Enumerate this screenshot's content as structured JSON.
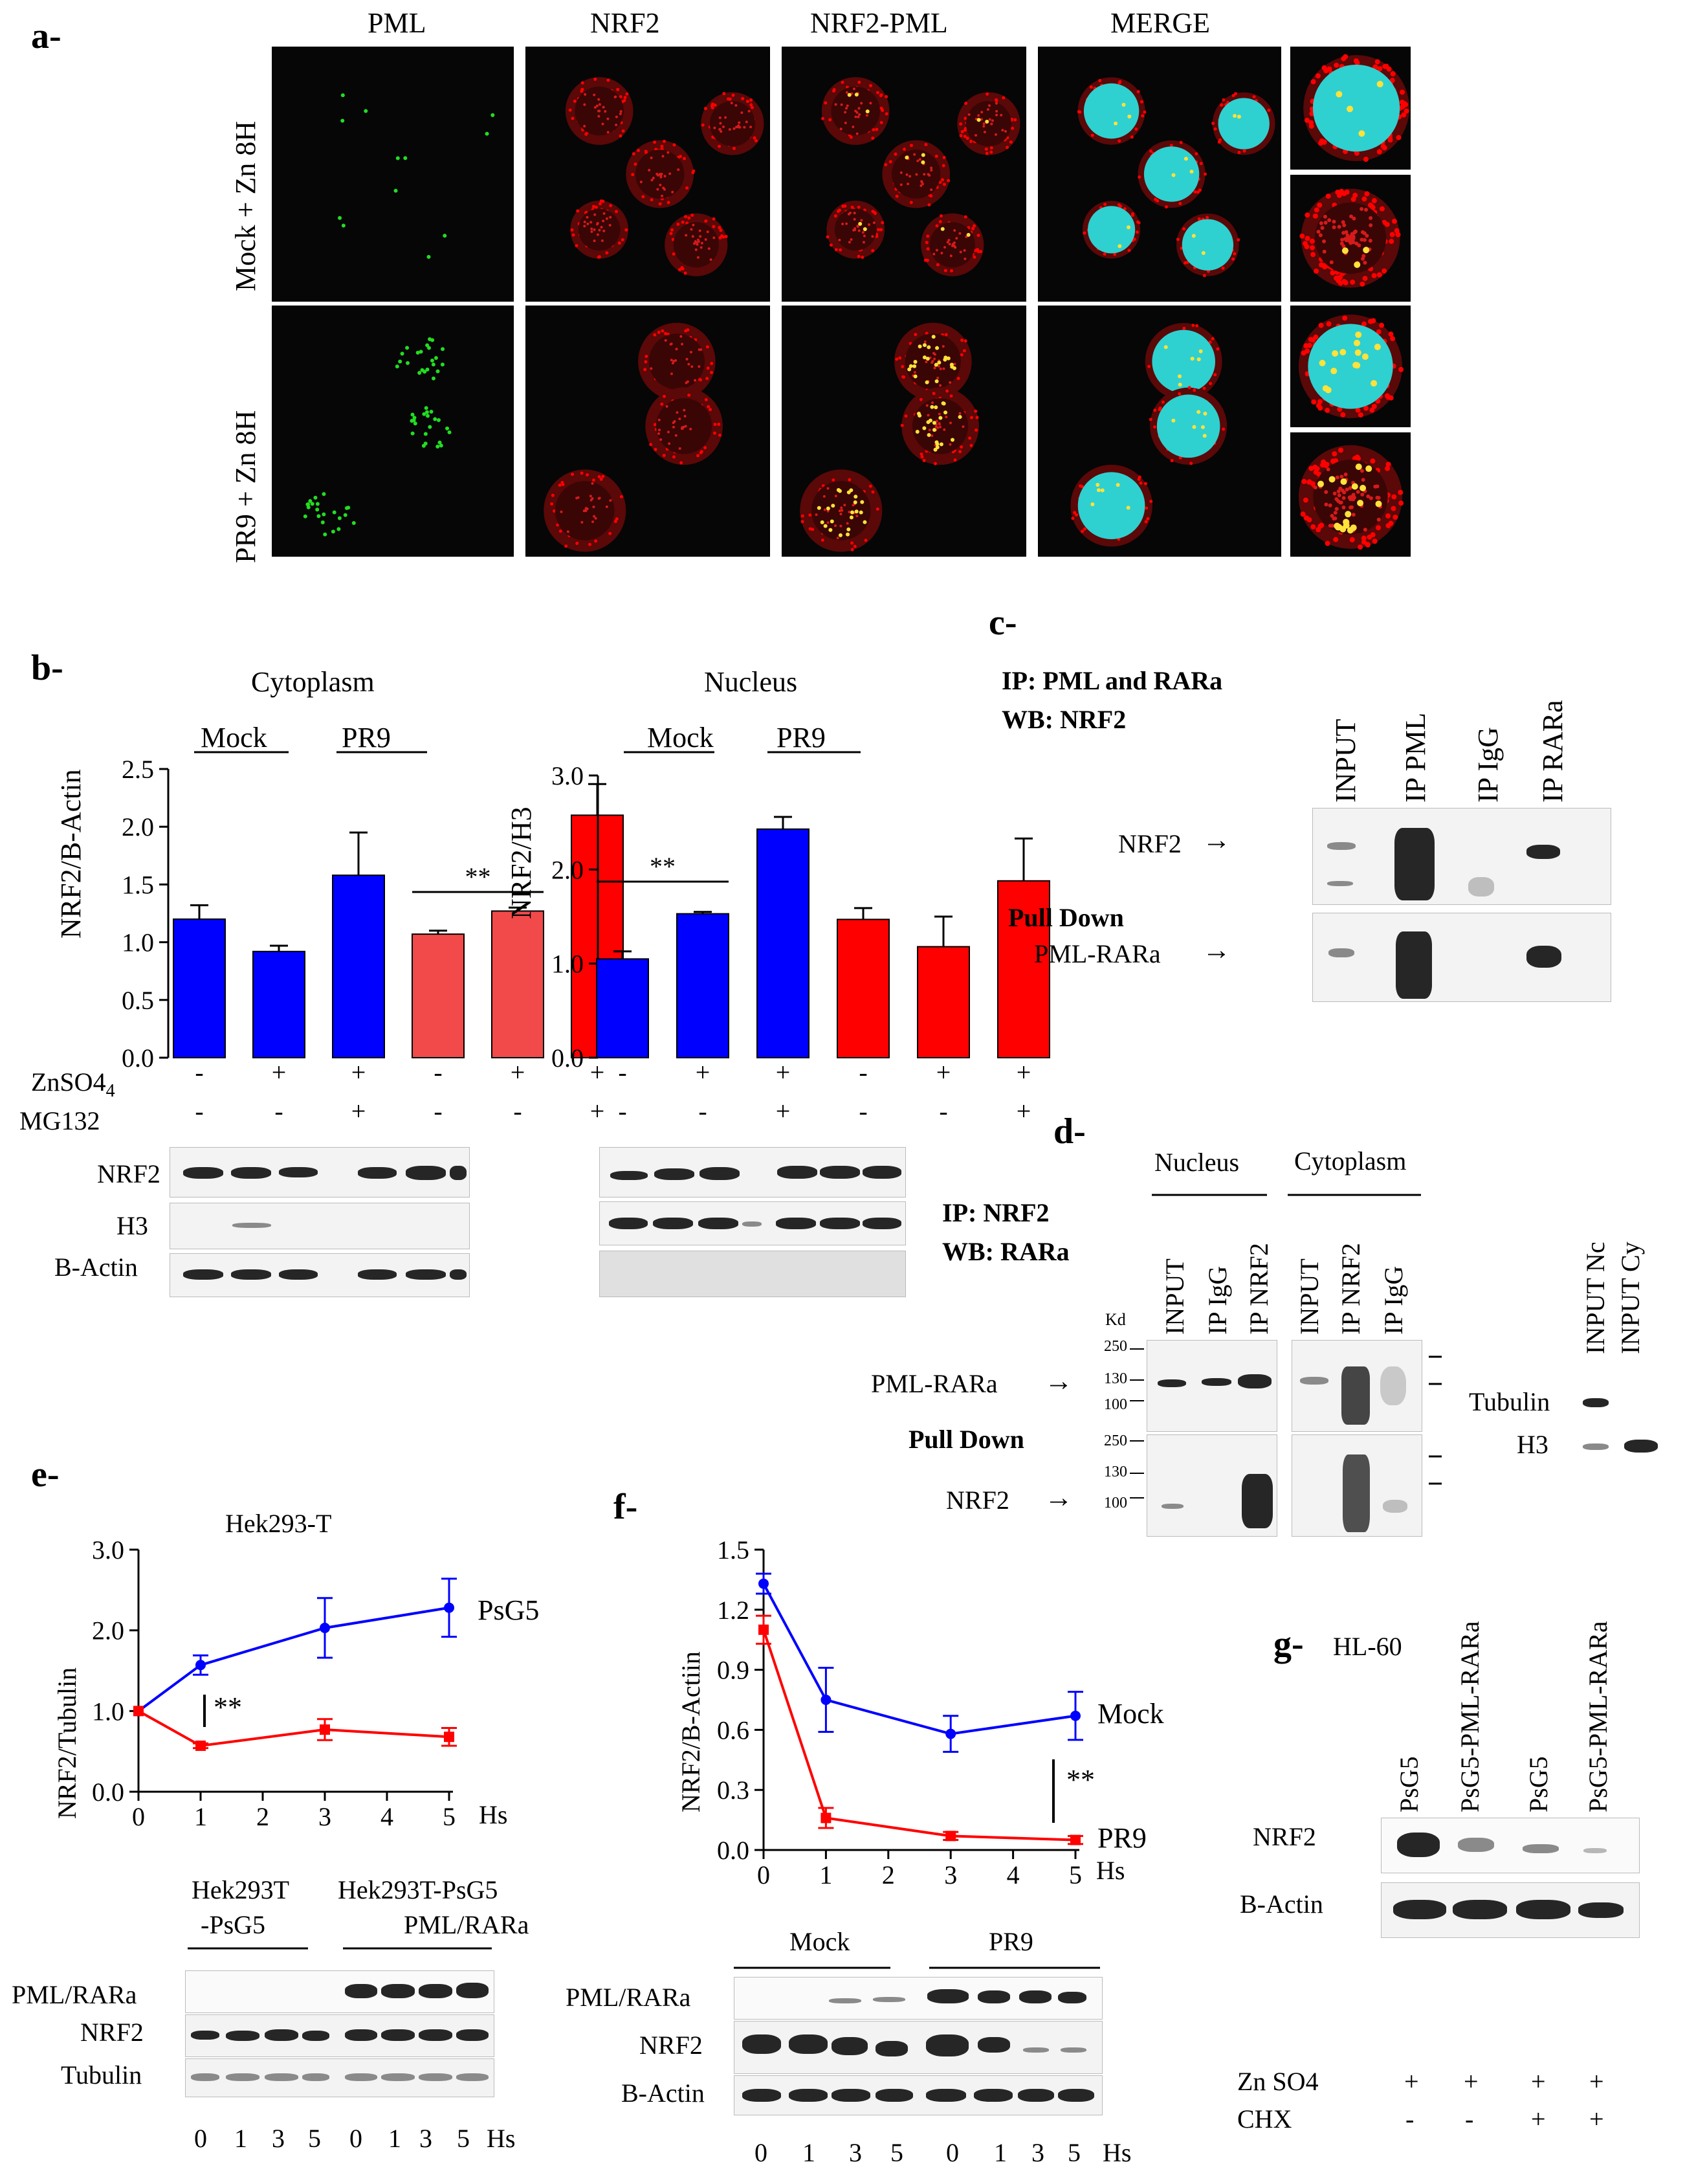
{
  "panel_labels": {
    "a": "a-",
    "b": "b-",
    "c": "c-",
    "d": "d-",
    "e": "e-",
    "f": "f-",
    "g": "g-"
  },
  "panel_a": {
    "columns": [
      "PML",
      "NRF2",
      "NRF2-PML",
      "MERGE"
    ],
    "rows": [
      "Mock + Zn 8H",
      "PR9 + Zn 8H"
    ]
  },
  "panel_b": {
    "cytoplasm_title": "Cytoplasm",
    "nucleus_title": "Nucleus",
    "group_mock": "Mock",
    "group_pr9": "PR9",
    "treat_labels": [
      "ZnSO4",
      "MG132"
    ],
    "treat_sub": "4",
    "znso4": [
      "-",
      "+",
      "+",
      "-",
      "+",
      "+"
    ],
    "mg132": [
      "-",
      "-",
      "+",
      "-",
      "-",
      "+"
    ],
    "sig": "**",
    "blot_labels": [
      "NRF2",
      "H3",
      "B-Actin"
    ]
  },
  "panel_c": {
    "title_lines": [
      "IP: PML and RARa",
      "WB: NRF2"
    ],
    "lanes": [
      "INPUT",
      "IP PML",
      "IP IgG",
      "IP RARa"
    ],
    "row1": "NRF2",
    "pull_down": "Pull Down",
    "row2": "PML-RARa",
    "arrow": "→"
  },
  "panel_d": {
    "nucleus": "Nucleus",
    "cytoplasm": "Cytoplasm",
    "title_lines": [
      "IP: NRF2",
      "WB: RARa"
    ],
    "lanes": [
      "INPUT",
      "IP IgG",
      "IP NRF2",
      "INPUT",
      "IP NRF2",
      "IP IgG"
    ],
    "kd": "Kd",
    "markers_top": [
      "250",
      "130",
      "100"
    ],
    "markers_bottom": [
      "250",
      "130",
      "100"
    ],
    "row1": "PML-RARa",
    "pull_down": "Pull Down",
    "row2": "NRF2",
    "side_lanes": [
      "INPUT Nc",
      "INPUT Cy"
    ],
    "side_rows": [
      "Tubulin",
      "H3"
    ],
    "arrow": "→"
  },
  "panel_e": {
    "title": "Hek293-T",
    "series_label": "PsG5",
    "sig": "**",
    "hs": "Hs",
    "group1": [
      "Hek293T",
      "-PsG5"
    ],
    "group2": [
      "Hek293T-PsG5",
      "PML/RARa"
    ],
    "blot_labels": [
      "PML/RARa",
      "NRF2",
      "Tubulin"
    ],
    "lanes": [
      "0",
      "1",
      "3",
      "5",
      "0",
      "1",
      "3",
      "5"
    ]
  },
  "panel_f": {
    "series_mock": "Mock",
    "series_pr9": "PR9",
    "sig": "**",
    "hs": "Hs",
    "group_mock": "Mock",
    "group_pr9": "PR9",
    "blot_labels": [
      "PML/RARa",
      "NRF2",
      "B-Actin"
    ],
    "lanes": [
      "0",
      "1",
      "3",
      "5",
      "0",
      "1",
      "3",
      "5"
    ]
  },
  "panel_g": {
    "title": "HL-60",
    "lanes": [
      "PsG5",
      "PsG5-PML-RARa",
      "PsG5",
      "PsG5-PML-RARa"
    ],
    "blot_labels": [
      "NRF2",
      "B-Actin"
    ],
    "treat_labels": [
      "Zn SO4",
      "CHX"
    ],
    "zn": [
      "+",
      "+",
      "+",
      "+"
    ],
    "chx": [
      "-",
      "-",
      "+",
      "+"
    ]
  },
  "colors": {
    "blue": "#0000ff",
    "red": "#ff0000",
    "pink": "#f24a4a",
    "cyan": "#2fd0d0",
    "micro_bg": "#060606"
  },
  "chart_data": [
    {
      "type": "bar",
      "title": "Cytoplasm",
      "ylabel": "NRF2/B-Actin",
      "ylim": [
        0,
        2.5
      ],
      "yticks": [
        "0.0",
        "0.5",
        "1.0",
        "1.5",
        "2.0",
        "2.5"
      ],
      "categories": [
        "Mock -/-",
        "Mock +/-",
        "Mock +/+",
        "PR9 -/-",
        "PR9 +/-",
        "PR9 +/+"
      ],
      "values": [
        1.2,
        0.92,
        1.58,
        1.07,
        1.27,
        2.1
      ],
      "errors": [
        0.12,
        0.05,
        0.37,
        0.03,
        0.03,
        0.27
      ],
      "bar_colors": [
        "#0000ff",
        "#0000ff",
        "#0000ff",
        "#f24a4a",
        "#f24a4a",
        "#ff0000"
      ],
      "sig_pair": [
        3,
        4
      ]
    },
    {
      "type": "bar",
      "title": "Nucleus",
      "ylabel": "NRF2/H3",
      "ylim": [
        0,
        3
      ],
      "yticks": [
        "0.0",
        "1.0",
        "2.0",
        "3.0"
      ],
      "categories": [
        "Mock -/-",
        "Mock +/-",
        "Mock +/+",
        "PR9 -/-",
        "PR9 +/-",
        "PR9 +/+"
      ],
      "values": [
        1.05,
        1.53,
        2.43,
        1.47,
        1.18,
        1.88
      ],
      "errors": [
        0.08,
        0.02,
        0.13,
        0.12,
        0.32,
        0.45
      ],
      "bar_colors": [
        "#0000ff",
        "#0000ff",
        "#0000ff",
        "#ff0000",
        "#ff0000",
        "#ff0000"
      ],
      "sig_pair": [
        0,
        1
      ]
    },
    {
      "type": "line",
      "title": "Hek293-T",
      "ylabel": "NRF2/Tubulin",
      "xlabel": "Hs",
      "xlim": [
        0,
        5
      ],
      "ylim": [
        0,
        3
      ],
      "xticks": [
        "0",
        "1",
        "2",
        "3",
        "4",
        "5"
      ],
      "yticks": [
        "0.0",
        "1.0",
        "2.0",
        "3.0"
      ],
      "series": [
        {
          "name": "PsG5",
          "color": "#0000ff",
          "x": [
            0,
            1,
            3,
            5
          ],
          "y": [
            1.0,
            1.57,
            2.03,
            2.28
          ],
          "err": [
            0,
            0.12,
            0.37,
            0.36
          ]
        },
        {
          "color": "#ff0000",
          "x": [
            0,
            1,
            3,
            5
          ],
          "y": [
            1.0,
            0.57,
            0.77,
            0.68
          ],
          "err": [
            0,
            0.03,
            0.13,
            0.11
          ]
        }
      ]
    },
    {
      "type": "line",
      "ylabel": "NRF2/B-Actiin",
      "xlabel": "Hs",
      "xlim": [
        0,
        5
      ],
      "ylim": [
        0,
        1.5
      ],
      "xticks": [
        "0",
        "1",
        "2",
        "3",
        "4",
        "5"
      ],
      "yticks": [
        "0.0",
        "0.3",
        "0.6",
        "0.9",
        "1.2",
        "1.5"
      ],
      "series": [
        {
          "name": "Mock",
          "color": "#0000ff",
          "x": [
            0,
            1,
            3,
            5
          ],
          "y": [
            1.33,
            0.75,
            0.58,
            0.67
          ],
          "err": [
            0.05,
            0.16,
            0.09,
            0.12
          ]
        },
        {
          "name": "PR9",
          "color": "#ff0000",
          "x": [
            0,
            1,
            3,
            5
          ],
          "y": [
            1.1,
            0.16,
            0.07,
            0.05
          ],
          "err": [
            0.07,
            0.05,
            0.02,
            0.02
          ]
        }
      ]
    }
  ]
}
